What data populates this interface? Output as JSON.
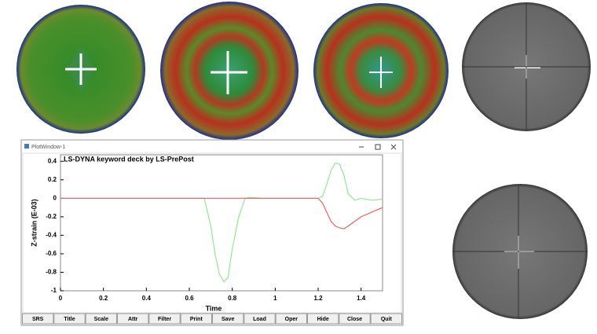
{
  "window": {
    "title": "PlotWindow-1",
    "buttons": [
      "SRS",
      "Title",
      "Scale",
      "Attr",
      "Filter",
      "Print",
      "Save",
      "Load",
      "Oper",
      "Hide",
      "Close",
      "Quit"
    ]
  },
  "chart_data": {
    "type": "line",
    "title": "LS-DYNA keyword deck by LS-PrePost",
    "x_label": "Time",
    "y_label": "Z-strain (E-03)",
    "x": [
      0,
      0.6,
      0.67,
      0.7,
      0.72,
      0.74,
      0.76,
      0.78,
      0.8,
      0.83,
      0.86,
      0.88,
      0.95,
      1.1,
      1.2,
      1.22,
      1.24,
      1.26,
      1.28,
      1.3,
      1.32,
      1.34,
      1.37,
      1.4,
      1.45,
      1.5
    ],
    "series": [
      {
        "color": "#8fe88f",
        "values": [
          0,
          0,
          0,
          -0.3,
          -0.6,
          -0.82,
          -0.9,
          -0.86,
          -0.55,
          -0.2,
          0,
          0.01,
          0,
          0,
          0,
          0.02,
          0.15,
          0.3,
          0.38,
          0.37,
          0.25,
          0.05,
          -0.02,
          0,
          -0.02,
          -0.01
        ]
      },
      {
        "color": "#e86060",
        "values": [
          0,
          0,
          0,
          0,
          0,
          0,
          0,
          0,
          0,
          0,
          0,
          0,
          0,
          0,
          0,
          -0.05,
          -0.15,
          -0.25,
          -0.3,
          -0.32,
          -0.33,
          -0.3,
          -0.25,
          -0.2,
          -0.15,
          -0.1
        ]
      }
    ],
    "xlim": [
      0,
      1.5
    ],
    "xticks": [
      0,
      0.2,
      0.4,
      0.6,
      0.8,
      1,
      1.2,
      1.4
    ],
    "ylim": [
      -1,
      0.47
    ],
    "yticks": [
      0.4,
      0.2,
      0,
      -0.2,
      -0.4,
      -0.6,
      -0.8,
      -1
    ],
    "grid": false
  }
}
